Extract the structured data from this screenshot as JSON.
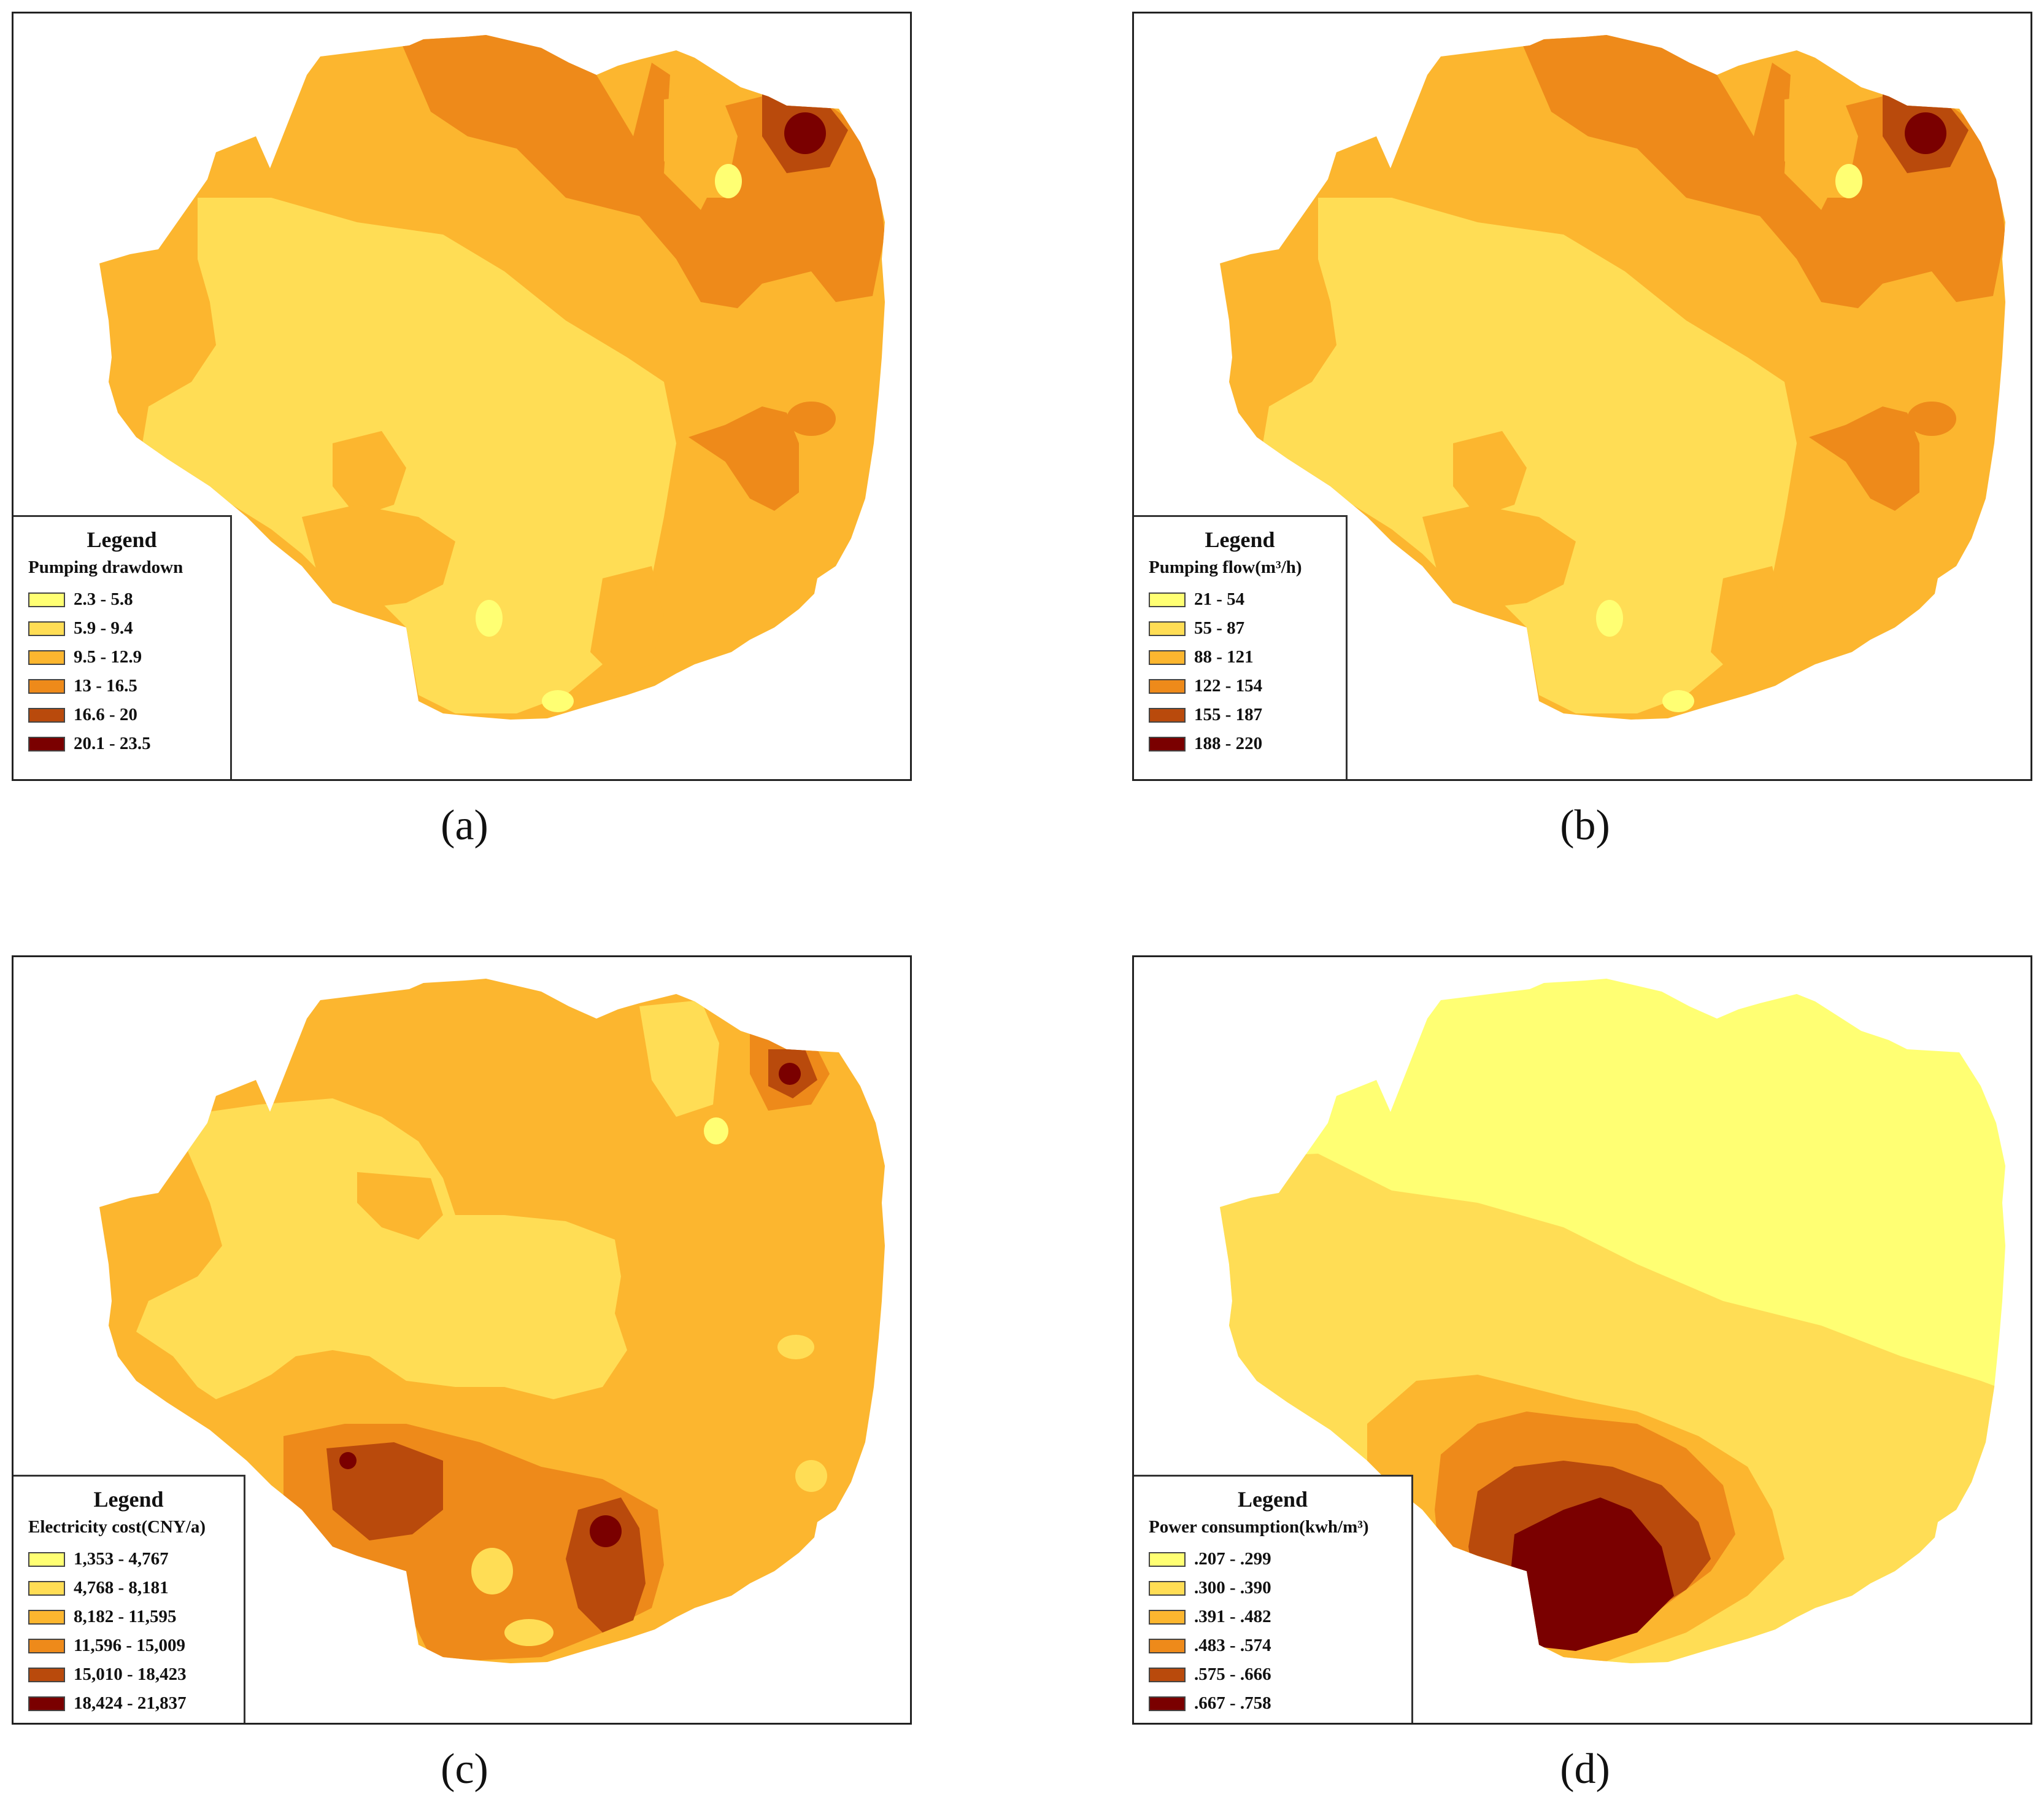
{
  "colors": {
    "c1": "#FFFF73",
    "c2": "#FFDD55",
    "c3": "#FCB62F",
    "c4": "#EE8A1A",
    "c5": "#B94A0C",
    "c6": "#7A0000",
    "outline": "#222222"
  },
  "panels": [
    {
      "id": "a",
      "caption": "(a)",
      "legend": {
        "title": "Legend",
        "variable": "Pumping drawdown",
        "classes": [
          "2.3 - 5.8",
          "5.9 - 9.4",
          "9.5 - 12.9",
          "13 - 16.5",
          "16.6 - 20",
          "20.1 - 23.5"
        ]
      }
    },
    {
      "id": "b",
      "caption": "(b)",
      "legend": {
        "title": "Legend",
        "variable": "Pumping flow(m³/h)",
        "classes": [
          "21 - 54",
          "55 - 87",
          "88 - 121",
          "122 - 154",
          "155 - 187",
          "188 - 220"
        ]
      }
    },
    {
      "id": "c",
      "caption": "(c)",
      "legend": {
        "title": "Legend",
        "variable": "Electricity cost(CNY/a)",
        "classes": [
          "1,353 - 4,767",
          "4,768 - 8,181",
          "8,182 - 11,595",
          "11,596 - 15,009",
          "15,010 - 18,423",
          "18,424 - 21,837"
        ]
      }
    },
    {
      "id": "d",
      "caption": "(d)",
      "legend": {
        "title": "Legend",
        "variable": "Power consumption(kwh/m³)",
        "classes": [
          ".207 - .299",
          ".300 - .390",
          ".391 - .482",
          ".483 - .574",
          ".575 - .666",
          ".667 - .758"
        ]
      }
    }
  ]
}
